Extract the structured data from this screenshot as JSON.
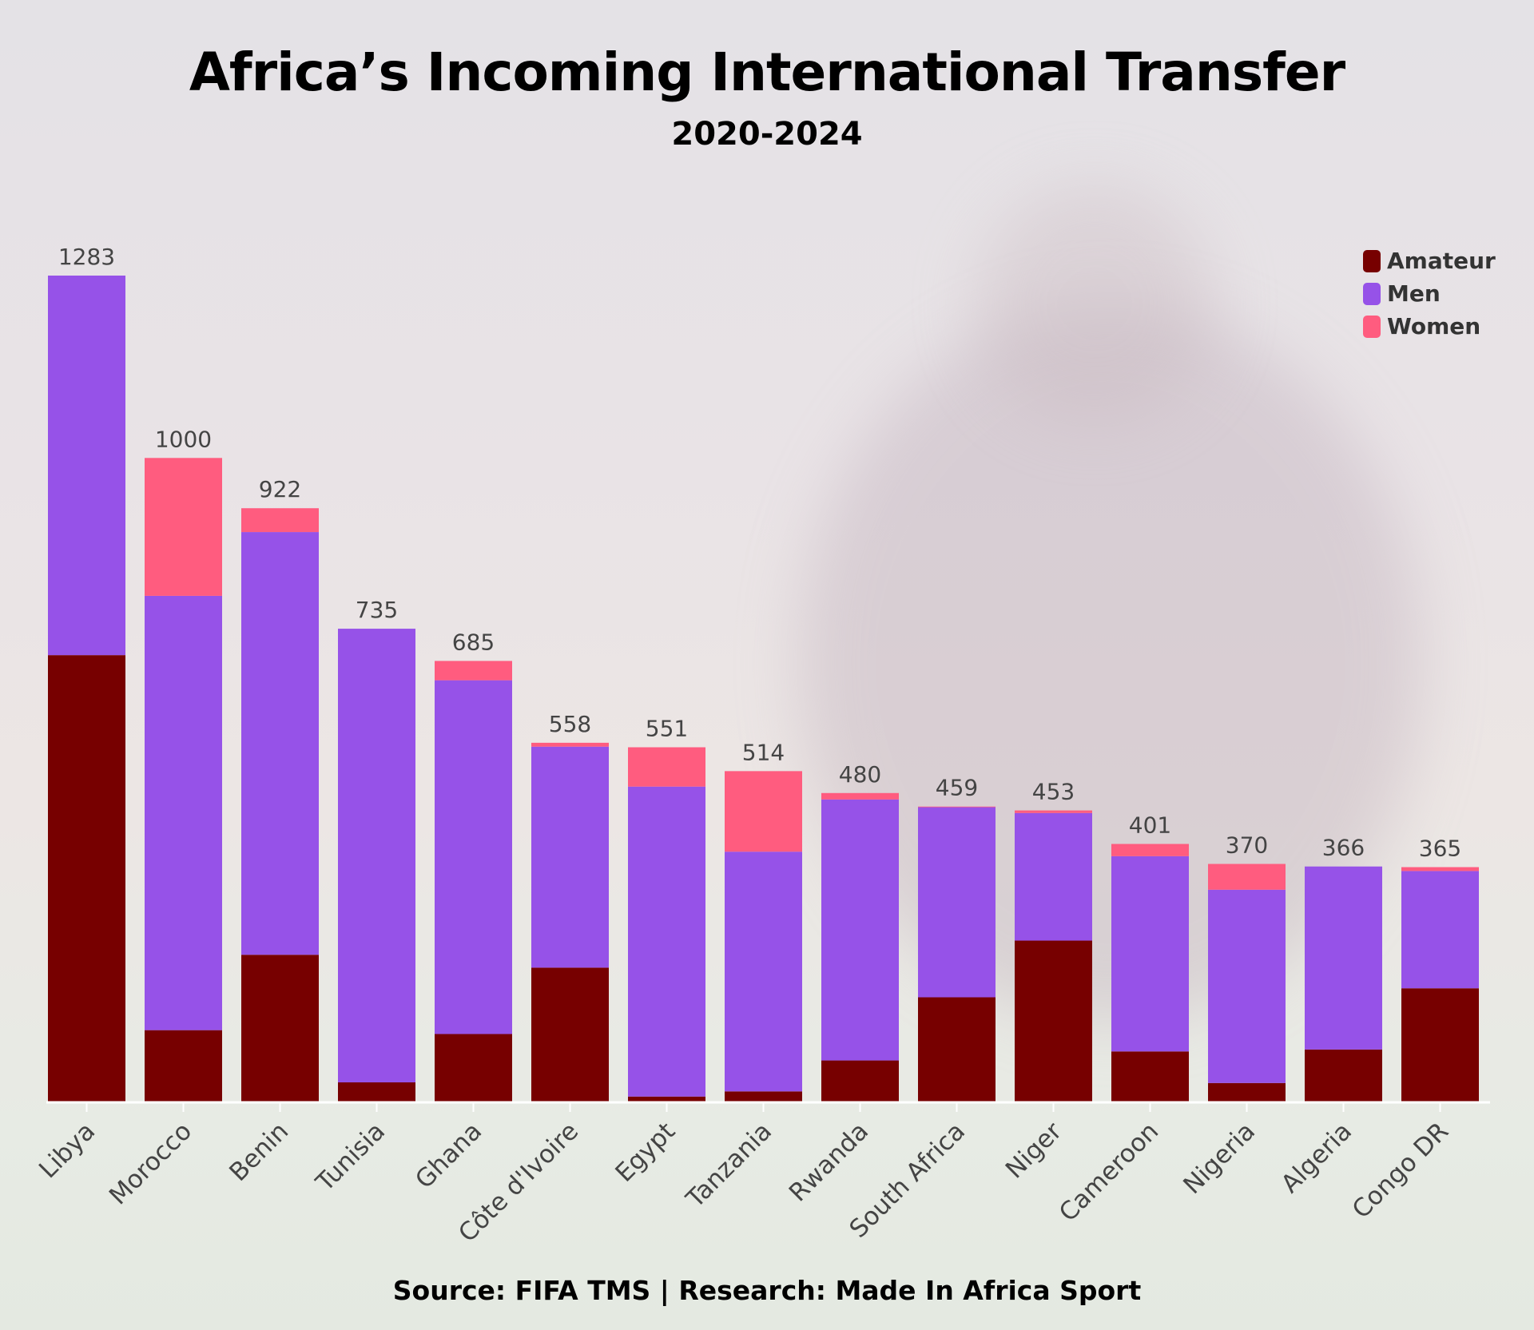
{
  "title": "Africa’s Incoming International Transfer",
  "subtitle": "2020-2024",
  "source": "Source: FIFA TMS | Research: Made In Africa Sport",
  "colors": {
    "amateur": "#770000",
    "men": "#9652e8",
    "women": "#ff5c7f",
    "axis": "#ffffff",
    "label": "#444444"
  },
  "legend": [
    {
      "label": "Amateur",
      "color": "#770000"
    },
    {
      "label": "Men",
      "color": "#9652e8"
    },
    {
      "label": "Women",
      "color": "#ff5c7f"
    }
  ],
  "chart_data": {
    "type": "bar",
    "stacked": true,
    "title": "Africa’s Incoming International Transfer",
    "subtitle": "2020-2024",
    "categories": [
      "Libya",
      "Morocco",
      "Benin",
      "Tunisia",
      "Ghana",
      "Côte d'Ivoire",
      "Egypt",
      "Tanzania",
      "Rwanda",
      "South Africa",
      "Niger",
      "Cameroon",
      "Nigeria",
      "Algeria",
      "Congo DR"
    ],
    "totals": [
      1283,
      1000,
      922,
      735,
      685,
      558,
      551,
      514,
      480,
      459,
      453,
      401,
      370,
      366,
      365
    ],
    "series": [
      {
        "name": "Amateur",
        "values": [
          694,
          112,
          229,
          31,
          106,
          209,
          9,
          17,
          65,
          163,
          251,
          79,
          30,
          82,
          177
        ]
      },
      {
        "name": "Men",
        "values": [
          589,
          674,
          656,
          704,
          549,
          343,
          481,
          372,
          405,
          295,
          198,
          303,
          300,
          284,
          182
        ]
      },
      {
        "name": "Women",
        "values": [
          0,
          214,
          37,
          0,
          30,
          6,
          61,
          125,
          10,
          1,
          4,
          19,
          40,
          0,
          6
        ]
      }
    ],
    "ylim": [
      0,
      1283
    ],
    "grid": false,
    "legend_position": "top-right",
    "xlabel": "",
    "ylabel": ""
  }
}
